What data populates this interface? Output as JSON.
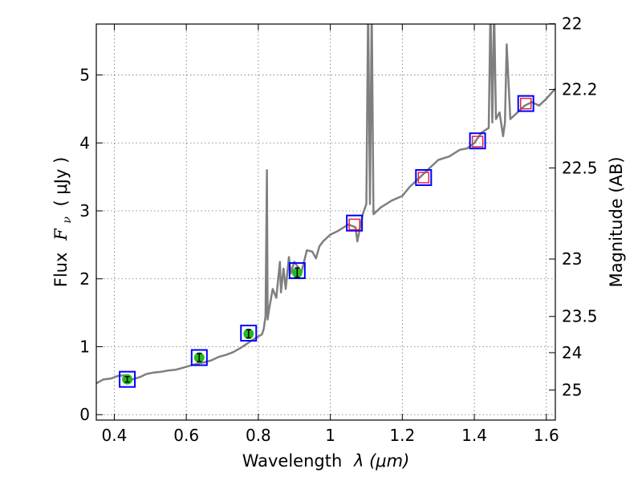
{
  "chart_data": {
    "type": "line",
    "xlabel": "Wavelength",
    "xlabel_math": "λ (μm)",
    "ylabel": "Flux",
    "ylabel_math": "F",
    "ylabel_sub": "ν",
    "ylabel_unit": "( μJy )",
    "y2label": "Magnitude (AB)",
    "xlim": [
      0.35,
      1.625
    ],
    "ylim": [
      -0.08,
      5.75
    ],
    "grid": true,
    "x_ticks": [
      0.4,
      0.6,
      0.8,
      1.0,
      1.2,
      1.4,
      1.6
    ],
    "x_tick_labels": [
      "0.4",
      "0.6",
      "0.8",
      "1",
      "1.2",
      "1.4",
      "1.6"
    ],
    "y_ticks": [
      0,
      1,
      2,
      3,
      4,
      5
    ],
    "y_tick_labels": [
      "0",
      "1",
      "2",
      "3",
      "4",
      "5"
    ],
    "y2_ticks": [
      22,
      22.2,
      22.5,
      23,
      23.5,
      24,
      25
    ],
    "y2_tick_labels": [
      "22",
      "22.2",
      "22.5",
      "23",
      "23.5",
      "24",
      "25"
    ],
    "series": [
      {
        "kind": "model-spectrum",
        "color": "#7f7f7f",
        "x": [
          0.35,
          0.37,
          0.39,
          0.41,
          0.43,
          0.45,
          0.47,
          0.49,
          0.51,
          0.53,
          0.55,
          0.57,
          0.59,
          0.61,
          0.63,
          0.65,
          0.67,
          0.69,
          0.71,
          0.73,
          0.75,
          0.77,
          0.79,
          0.81,
          0.815,
          0.82,
          0.824,
          0.826,
          0.83,
          0.84,
          0.85,
          0.86,
          0.863,
          0.87,
          0.876,
          0.885,
          0.89,
          0.9,
          0.92,
          0.935,
          0.95,
          0.96,
          0.97,
          0.98,
          1.0,
          1.02,
          1.05,
          1.07,
          1.075,
          1.09,
          1.1,
          1.105,
          1.11,
          1.115,
          1.12,
          1.14,
          1.17,
          1.2,
          1.22,
          1.25,
          1.28,
          1.3,
          1.33,
          1.36,
          1.38,
          1.4,
          1.42,
          1.44,
          1.445,
          1.45,
          1.455,
          1.46,
          1.47,
          1.48,
          1.485,
          1.49,
          1.5,
          1.52,
          1.54,
          1.56,
          1.58,
          1.6,
          1.625
        ],
        "y": [
          0.46,
          0.52,
          0.53,
          0.57,
          0.58,
          0.52,
          0.55,
          0.6,
          0.62,
          0.63,
          0.65,
          0.66,
          0.69,
          0.72,
          0.75,
          0.77,
          0.8,
          0.85,
          0.88,
          0.92,
          0.98,
          1.05,
          1.12,
          1.18,
          1.26,
          1.45,
          3.6,
          1.4,
          1.55,
          1.85,
          1.72,
          2.25,
          1.8,
          2.15,
          1.85,
          2.32,
          2.08,
          2.25,
          2.1,
          2.42,
          2.4,
          2.3,
          2.48,
          2.55,
          2.65,
          2.7,
          2.8,
          2.76,
          2.55,
          2.95,
          3.1,
          6.0,
          3.1,
          6.0,
          2.95,
          3.05,
          3.15,
          3.22,
          3.35,
          3.5,
          3.65,
          3.75,
          3.8,
          3.9,
          3.92,
          4.0,
          4.15,
          4.22,
          6.0,
          4.3,
          6.0,
          4.35,
          4.45,
          4.1,
          4.3,
          5.45,
          4.35,
          4.45,
          4.55,
          4.6,
          4.55,
          4.65,
          4.8
        ]
      },
      {
        "kind": "model-photometry",
        "marker": "open-square",
        "color": "#0000ff",
        "x": [
          0.436,
          0.636,
          0.773,
          0.908,
          1.067,
          1.259,
          1.409,
          1.543
        ],
        "y": [
          0.52,
          0.84,
          1.2,
          2.12,
          2.82,
          3.49,
          4.03,
          4.58
        ]
      },
      {
        "kind": "observed-photometry",
        "marker": "filled-circle",
        "color": "#22bb22",
        "x": [
          0.436,
          0.636,
          0.773,
          0.908
        ],
        "y": [
          0.52,
          0.84,
          1.19,
          2.09
        ],
        "yerr": [
          0.04,
          0.06,
          0.06,
          0.07
        ]
      },
      {
        "kind": "upper-limit",
        "marker": "open-square",
        "color": "#dd2244",
        "x": [
          1.067,
          1.259,
          1.409,
          1.543
        ],
        "y": [
          2.8,
          3.49,
          4.02,
          4.58
        ]
      }
    ]
  }
}
